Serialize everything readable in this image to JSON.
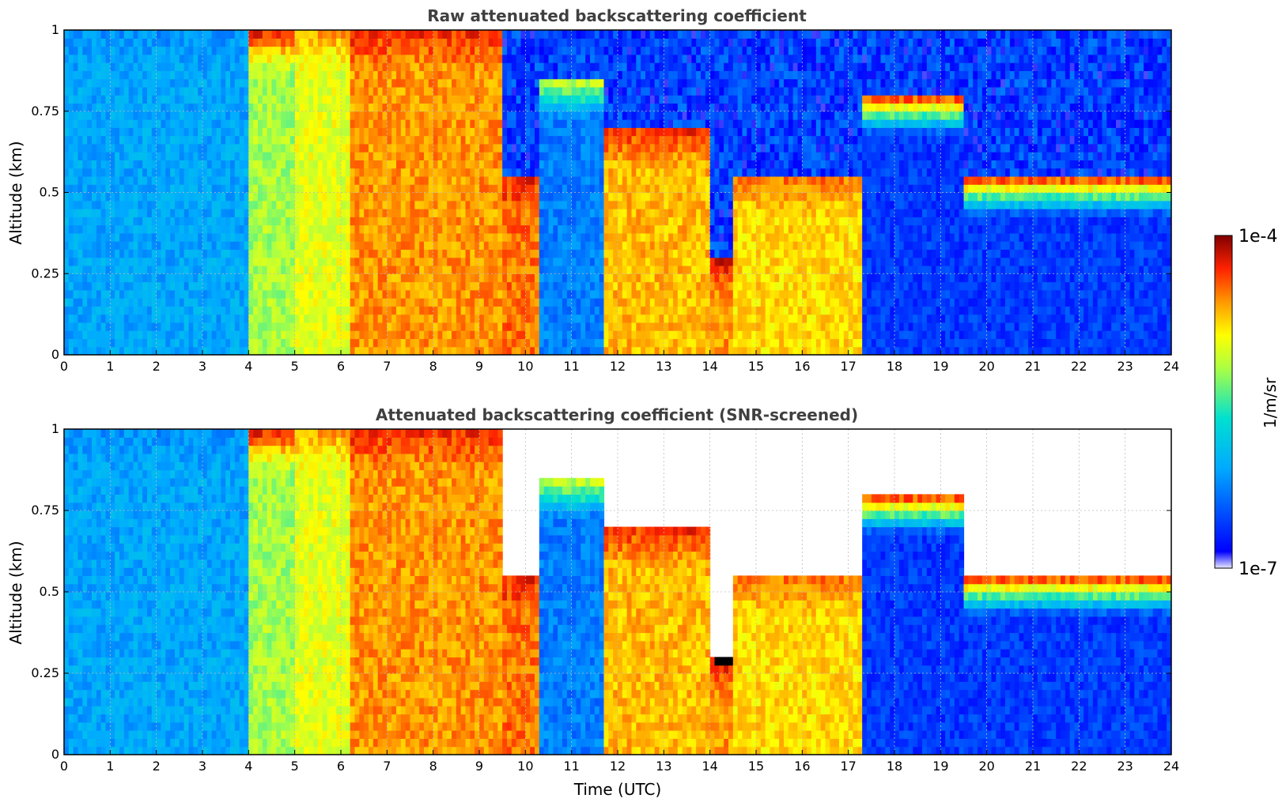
{
  "chart_data": [
    {
      "type": "heatmap",
      "title": "Raw attenuated backscattering coefficient",
      "xlabel": "",
      "ylabel": "Altitude (km)",
      "xlim": [
        0,
        24
      ],
      "ylim": [
        0,
        1
      ],
      "x_ticks": [
        "0",
        "1",
        "2",
        "3",
        "4",
        "5",
        "6",
        "7",
        "8",
        "9",
        "10",
        "11",
        "12",
        "13",
        "14",
        "15",
        "16",
        "17",
        "18",
        "19",
        "20",
        "21",
        "22",
        "23",
        "24"
      ],
      "y_ticks": [
        "0",
        "0.25",
        "0.5",
        "0.75",
        "1"
      ],
      "grid": true,
      "colorscale": "jet",
      "value_range": [
        1e-07,
        0.0001
      ],
      "segments": [
        {
          "t0": 0.0,
          "t1": 4.0,
          "mean_log10": -6.1,
          "top_km": 1.0,
          "top_log10": -6.2
        },
        {
          "t0": 4.0,
          "t1": 5.0,
          "mean_log10": -5.2,
          "top_km": 1.0,
          "top_log10": -4.2
        },
        {
          "t0": 5.0,
          "t1": 6.2,
          "mean_log10": -5.0,
          "top_km": 1.0,
          "top_log10": -4.6
        },
        {
          "t0": 6.2,
          "t1": 9.5,
          "mean_log10": -4.6,
          "top_km": 1.0,
          "top_log10": -4.3
        },
        {
          "t0": 9.5,
          "t1": 10.3,
          "mean_log10": -4.5,
          "top_km": 0.55,
          "top_log10": -4.3
        },
        {
          "t0": 10.3,
          "t1": 11.7,
          "mean_log10": -6.3,
          "top_km": 0.85,
          "top_log10": -5.0
        },
        {
          "t0": 11.7,
          "t1": 14.0,
          "mean_log10": -4.7,
          "top_km": 0.7,
          "top_log10": -4.3
        },
        {
          "t0": 14.0,
          "t1": 14.5,
          "mean_log10": -4.6,
          "top_km": 0.3,
          "top_log10": -4.2
        },
        {
          "t0": 14.5,
          "t1": 17.3,
          "mean_log10": -4.8,
          "top_km": 0.55,
          "top_log10": -4.5
        },
        {
          "t0": 17.3,
          "t1": 19.5,
          "mean_log10": -6.6,
          "top_km": 0.8,
          "top_log10": -4.2
        },
        {
          "t0": 19.5,
          "t1": 24.0,
          "mean_log10": -6.6,
          "top_km": 0.55,
          "top_log10": -4.2
        }
      ]
    },
    {
      "type": "heatmap",
      "title": "Attenuated backscattering coefficient (SNR-screened)",
      "xlabel": "Time (UTC)",
      "ylabel": "Altitude (km)",
      "xlim": [
        0,
        24
      ],
      "ylim": [
        0,
        1
      ],
      "x_ticks": [
        "0",
        "1",
        "2",
        "3",
        "4",
        "5",
        "6",
        "7",
        "8",
        "9",
        "10",
        "11",
        "12",
        "13",
        "14",
        "15",
        "16",
        "17",
        "18",
        "19",
        "20",
        "21",
        "22",
        "23",
        "24"
      ],
      "y_ticks": [
        "0",
        "0.25",
        "0.5",
        "0.75",
        "1"
      ],
      "grid": true,
      "colorscale": "jet",
      "value_range": [
        1e-07,
        0.0001
      ],
      "note_screened": "pixels above the cloud/aerosol top are masked (white); strongest layers drawn black"
    }
  ],
  "colorbar": {
    "max_label": "1e-4",
    "min_label": "1e-7",
    "label": "1/m/sr"
  }
}
